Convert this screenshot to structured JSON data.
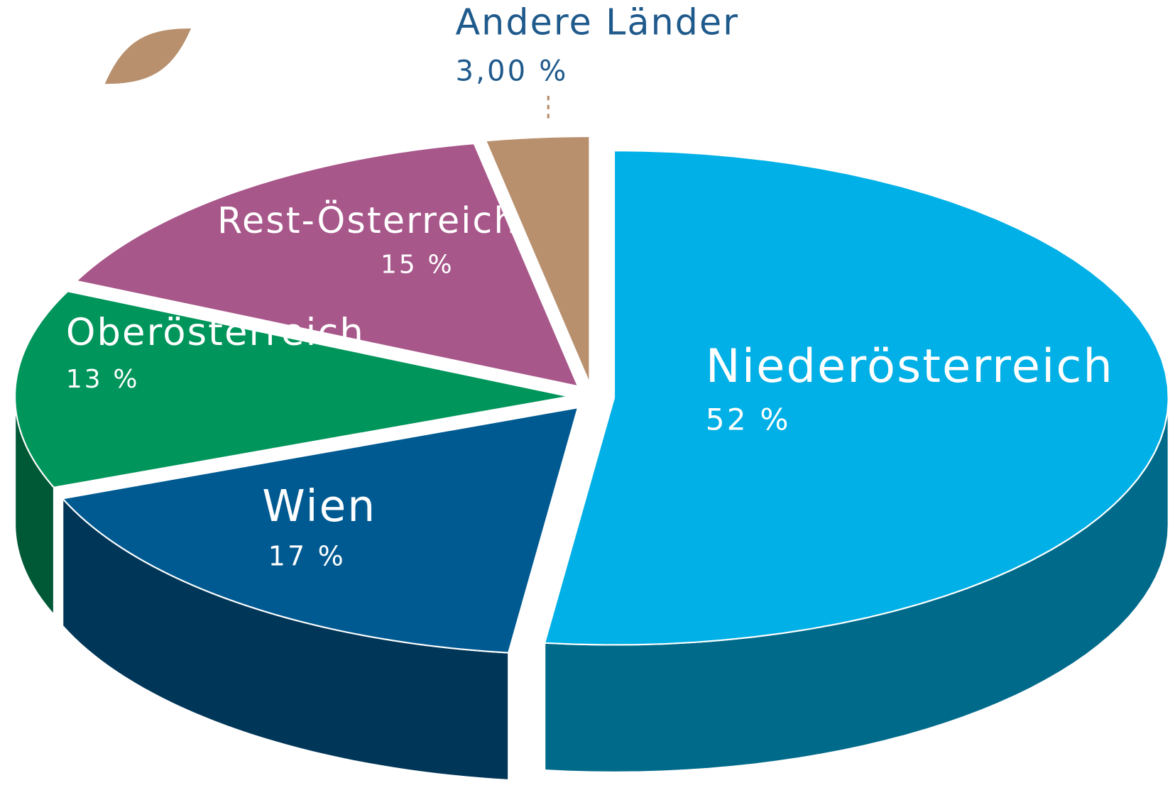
{
  "chart_data": {
    "type": "pie",
    "categories": [
      "Niederösterreich",
      "Wien",
      "Oberösterreich",
      "Rest-Österreich",
      "Andere Länder"
    ],
    "values": [
      52,
      17,
      13,
      15,
      3
    ],
    "value_labels": [
      "52 %",
      "17 %",
      "13 %",
      "15 %",
      "3,00 %"
    ],
    "colors": [
      "#00b0e6",
      "#005a92",
      "#00955a",
      "#a8578a",
      "#b8906e"
    ]
  }
}
